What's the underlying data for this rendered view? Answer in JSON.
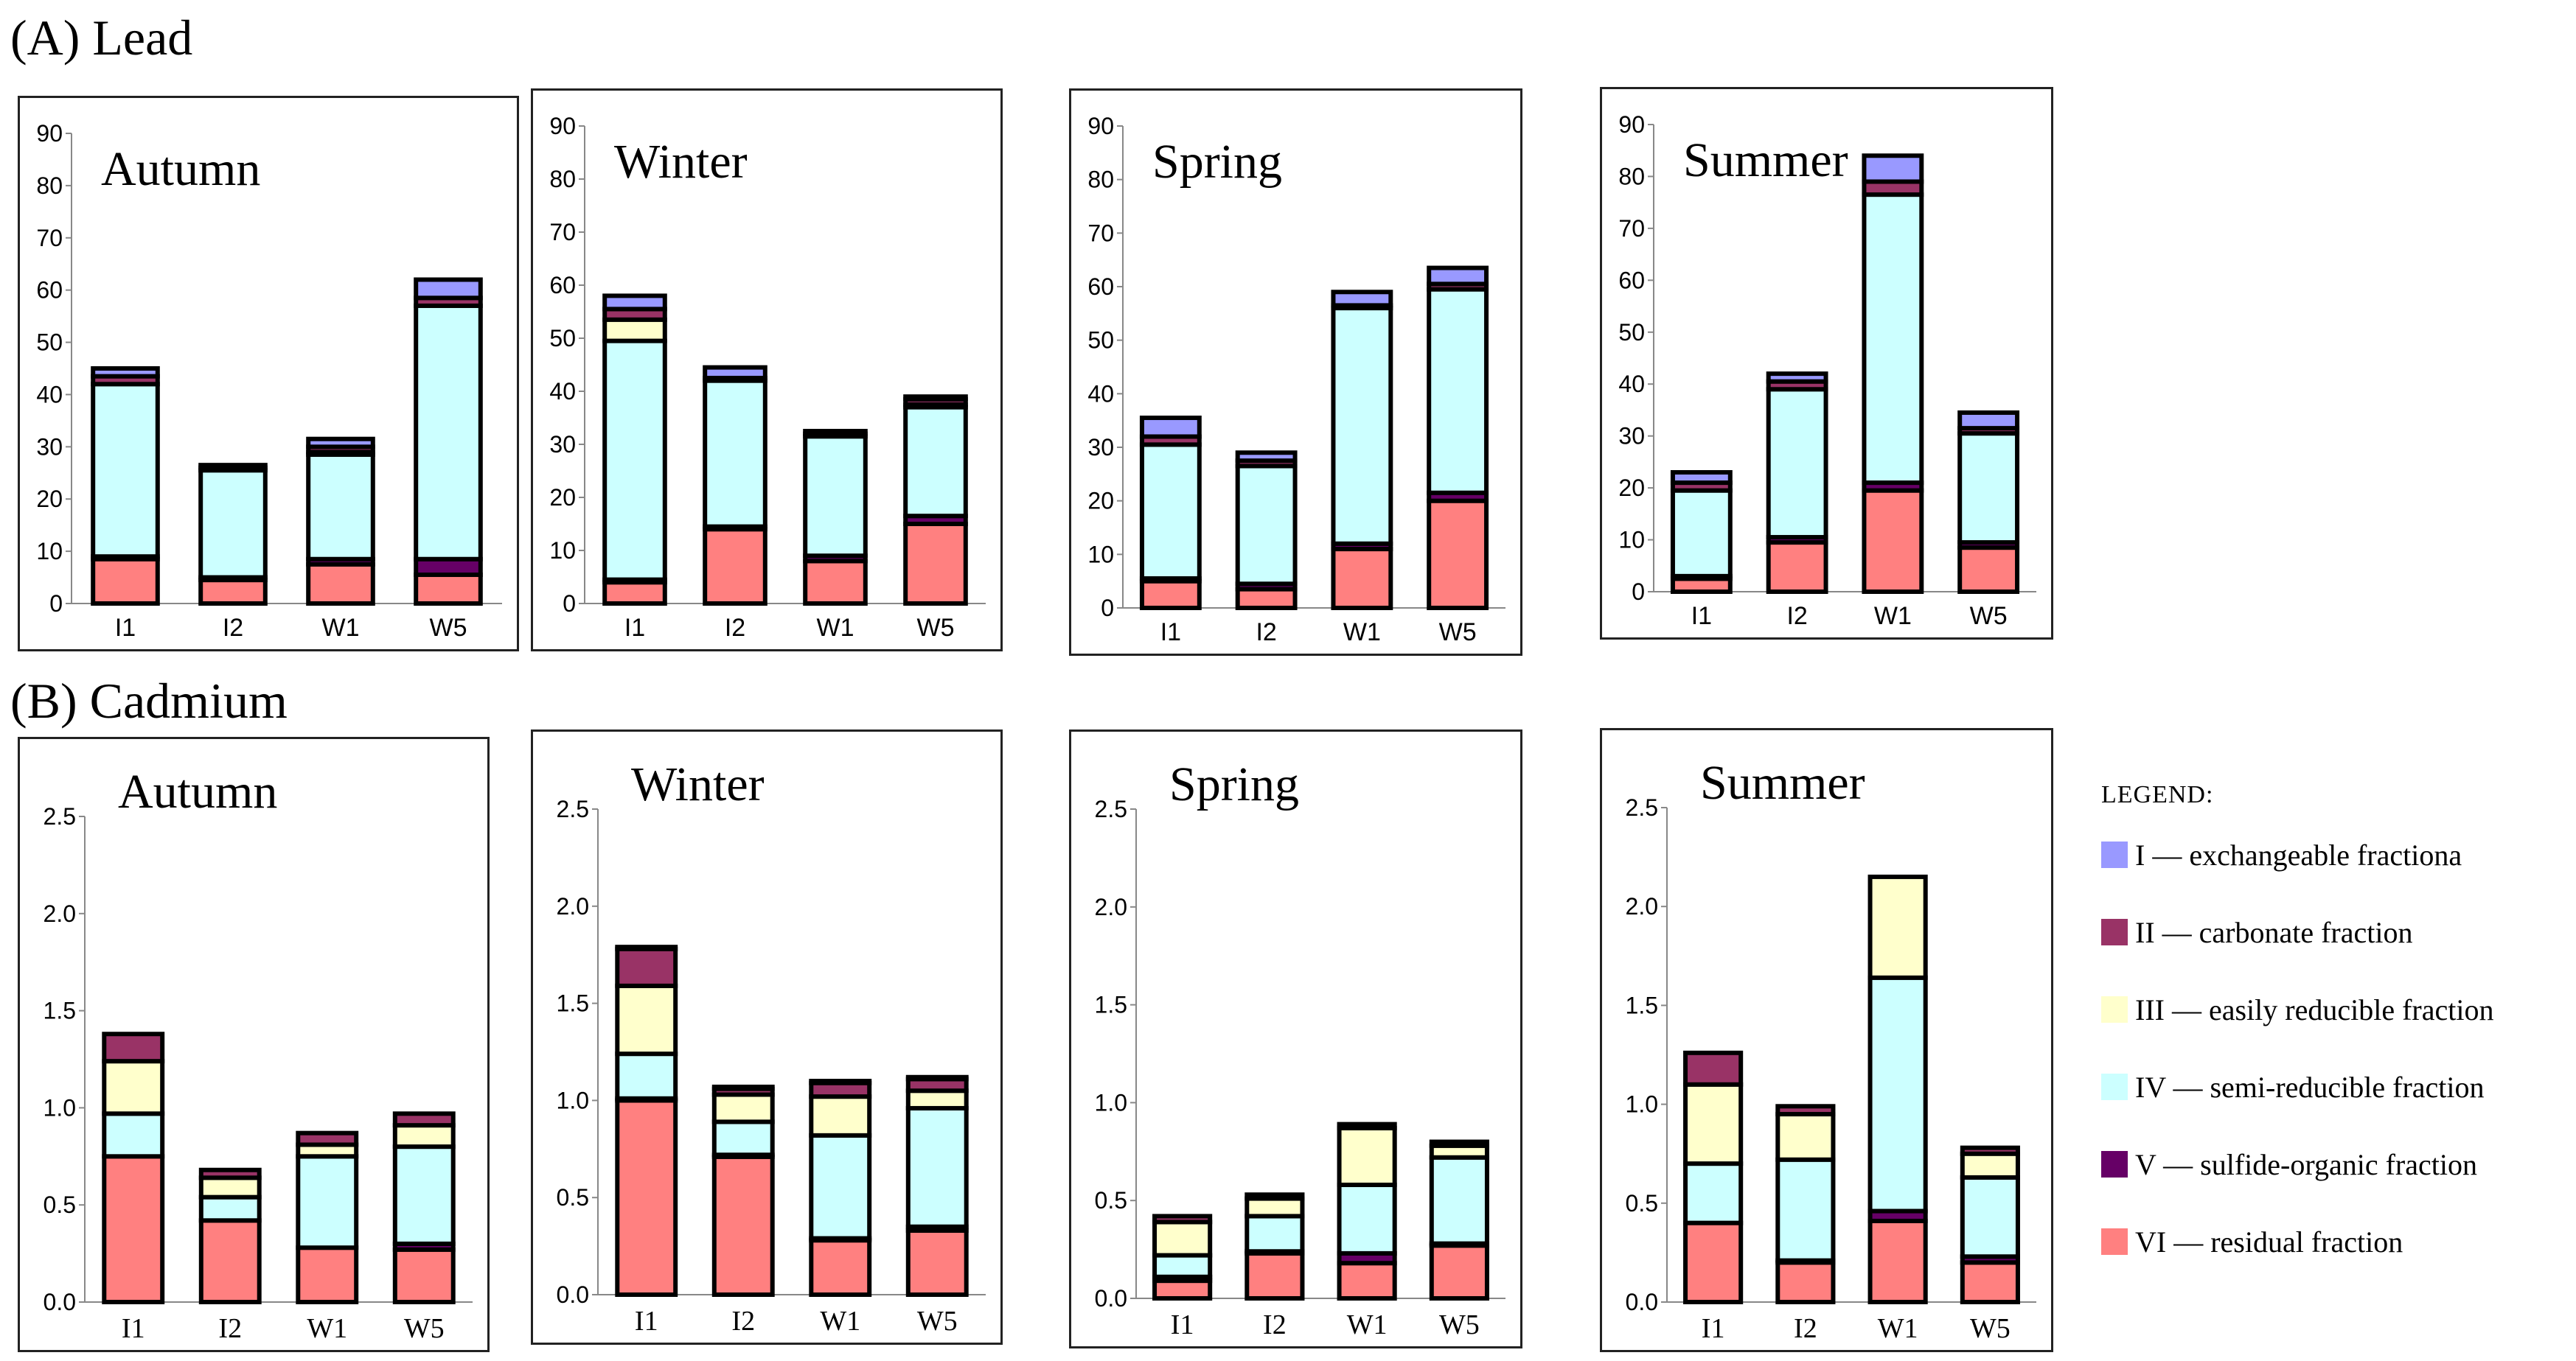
{
  "figure": {
    "section_a": "(A) Lead",
    "section_b": "(B) Cadmium",
    "legend_title": "LEGEND:"
  },
  "legend": [
    {
      "label": "I — exchangeable fractiona",
      "color": "#9999ff"
    },
    {
      "label": "II — carbonate fraction",
      "color": "#993366"
    },
    {
      "label": "III — easily reducible fraction",
      "color": "#ffffcc"
    },
    {
      "label": "IV — semi-reducible fraction",
      "color": "#ccffff"
    },
    {
      "label": "V — sulfide-organic fraction",
      "color": "#660066"
    },
    {
      "label": "VI — residual fraction",
      "color": "#ff8080"
    }
  ],
  "chart_data": [
    {
      "type": "bar",
      "stacked": true,
      "metal": "Lead",
      "title": "Autumn",
      "categories": [
        "I1",
        "I2",
        "W1",
        "W5"
      ],
      "ylim": [
        0,
        90
      ],
      "yticks": [
        "0",
        "10",
        "20",
        "30",
        "40",
        "50",
        "60",
        "70",
        "80",
        "90"
      ],
      "series": [
        {
          "name": "VI — residual fraction",
          "values": [
            8.5,
            4.5,
            7.5,
            5.5
          ]
        },
        {
          "name": "V — sulfide-organic fraction",
          "values": [
            0.5,
            0.5,
            1.0,
            3.0
          ]
        },
        {
          "name": "IV — semi-reducible fraction",
          "values": [
            33,
            20.5,
            20,
            48.5
          ]
        },
        {
          "name": "III — easily reducible fraction",
          "values": [
            0,
            0,
            0.5,
            0
          ]
        },
        {
          "name": "II — carbonate fraction",
          "values": [
            1.5,
            0.5,
            1.0,
            1.5
          ]
        },
        {
          "name": "I — exchangeable fractiona",
          "values": [
            1.5,
            0.5,
            1.5,
            3.5
          ]
        }
      ]
    },
    {
      "type": "bar",
      "stacked": true,
      "metal": "Lead",
      "title": "Winter",
      "categories": [
        "I1",
        "I2",
        "W1",
        "W5"
      ],
      "ylim": [
        0,
        90
      ],
      "yticks": [
        "0",
        "10",
        "20",
        "30",
        "40",
        "50",
        "60",
        "70",
        "80",
        "90"
      ],
      "series": [
        {
          "name": "VI — residual fraction",
          "values": [
            4,
            14,
            8,
            15
          ]
        },
        {
          "name": "V — sulfide-organic fraction",
          "values": [
            0.5,
            0.5,
            1.0,
            1.5
          ]
        },
        {
          "name": "IV — semi-reducible fraction",
          "values": [
            45,
            27.5,
            22.5,
            20.5
          ]
        },
        {
          "name": "III — easily reducible fraction",
          "values": [
            4,
            0,
            0,
            0.5
          ]
        },
        {
          "name": "II — carbonate fraction",
          "values": [
            2,
            0.5,
            0.5,
            1.0
          ]
        },
        {
          "name": "I — exchangeable fractiona",
          "values": [
            2.5,
            2.0,
            0.5,
            0.5
          ]
        }
      ]
    },
    {
      "type": "bar",
      "stacked": true,
      "metal": "Lead",
      "title": "Spring",
      "categories": [
        "I1",
        "I2",
        "W1",
        "W5"
      ],
      "ylim": [
        0,
        90
      ],
      "yticks": [
        "0",
        "10",
        "20",
        "30",
        "40",
        "50",
        "60",
        "70",
        "80",
        "90"
      ],
      "series": [
        {
          "name": "VI — residual fraction",
          "values": [
            5,
            3.5,
            11,
            20
          ]
        },
        {
          "name": "V — sulfide-organic fraction",
          "values": [
            0.5,
            1.0,
            1.0,
            1.5
          ]
        },
        {
          "name": "IV — semi-reducible fraction",
          "values": [
            25,
            22,
            44,
            38
          ]
        },
        {
          "name": "III — easily reducible fraction",
          "values": [
            0,
            0,
            0,
            0
          ]
        },
        {
          "name": "II — carbonate fraction",
          "values": [
            1.5,
            1.0,
            0.5,
            1.0
          ]
        },
        {
          "name": "I — exchangeable fractiona",
          "values": [
            3.5,
            1.5,
            2.5,
            3.0
          ]
        }
      ]
    },
    {
      "type": "bar",
      "stacked": true,
      "metal": "Lead",
      "title": "Summer",
      "categories": [
        "I1",
        "I2",
        "W1",
        "W5"
      ],
      "ylim": [
        0,
        90
      ],
      "yticks": [
        "0",
        "10",
        "20",
        "30",
        "40",
        "50",
        "60",
        "70",
        "80",
        "90"
      ],
      "series": [
        {
          "name": "VI — residual fraction",
          "values": [
            2.5,
            9.5,
            19.5,
            8.5
          ]
        },
        {
          "name": "V — sulfide-organic fraction",
          "values": [
            0.5,
            1.0,
            1.5,
            1.0
          ]
        },
        {
          "name": "IV — semi-reducible fraction",
          "values": [
            16.5,
            28.5,
            55.5,
            21
          ]
        },
        {
          "name": "III — easily reducible fraction",
          "values": [
            0,
            0,
            0,
            0
          ]
        },
        {
          "name": "II — carbonate fraction",
          "values": [
            1.5,
            1.5,
            2.5,
            1.0
          ]
        },
        {
          "name": "I — exchangeable fractiona",
          "values": [
            2,
            1.5,
            5,
            3
          ]
        }
      ]
    },
    {
      "type": "bar",
      "stacked": true,
      "metal": "Cadmium",
      "title": "Autumn",
      "categories": [
        "I1",
        "I2",
        "W1",
        "W5"
      ],
      "ylim": [
        0,
        2.5
      ],
      "yticks": [
        "0.0",
        "0.5",
        "1.0",
        "1.5",
        "2.0",
        "2.5"
      ],
      "series": [
        {
          "name": "VI — residual fraction",
          "values": [
            0.75,
            0.42,
            0.28,
            0.27
          ]
        },
        {
          "name": "V — sulfide-organic fraction",
          "values": [
            0,
            0,
            0,
            0.03
          ]
        },
        {
          "name": "IV — semi-reducible fraction",
          "values": [
            0.22,
            0.12,
            0.47,
            0.5
          ]
        },
        {
          "name": "III — easily reducible fraction",
          "values": [
            0.27,
            0.1,
            0.06,
            0.11
          ]
        },
        {
          "name": "II — carbonate fraction",
          "values": [
            0.14,
            0.04,
            0.06,
            0.06
          ]
        },
        {
          "name": "I — exchangeable fractiona",
          "values": [
            0,
            0,
            0,
            0
          ]
        }
      ]
    },
    {
      "type": "bar",
      "stacked": true,
      "metal": "Cadmium",
      "title": "Winter",
      "categories": [
        "I1",
        "I2",
        "W1",
        "W5"
      ],
      "ylim": [
        0,
        2.5
      ],
      "yticks": [
        "0.0",
        "0.5",
        "1.0",
        "1.5",
        "2.0",
        "2.5"
      ],
      "series": [
        {
          "name": "VI — residual fraction",
          "values": [
            1.0,
            0.71,
            0.28,
            0.33
          ]
        },
        {
          "name": "V — sulfide-organic fraction",
          "values": [
            0.01,
            0.01,
            0.01,
            0.02
          ]
        },
        {
          "name": "IV — semi-reducible fraction",
          "values": [
            0.23,
            0.17,
            0.53,
            0.61
          ]
        },
        {
          "name": "III — easily reducible fraction",
          "values": [
            0.35,
            0.14,
            0.2,
            0.09
          ]
        },
        {
          "name": "II — carbonate fraction",
          "values": [
            0.19,
            0.03,
            0.07,
            0.06
          ]
        },
        {
          "name": "I — exchangeable fractiona",
          "values": [
            0.01,
            0.01,
            0.01,
            0.01
          ]
        }
      ]
    },
    {
      "type": "bar",
      "stacked": true,
      "metal": "Cadmium",
      "title": "Spring",
      "categories": [
        "I1",
        "I2",
        "W1",
        "W5"
      ],
      "ylim": [
        0,
        2.5
      ],
      "yticks": [
        "0.0",
        "0.5",
        "1.0",
        "1.5",
        "2.0",
        "2.5"
      ],
      "series": [
        {
          "name": "VI — residual fraction",
          "values": [
            0.09,
            0.23,
            0.18,
            0.27
          ]
        },
        {
          "name": "V — sulfide-organic fraction",
          "values": [
            0.02,
            0.01,
            0.05,
            0.01
          ]
        },
        {
          "name": "IV — semi-reducible fraction",
          "values": [
            0.11,
            0.18,
            0.35,
            0.44
          ]
        },
        {
          "name": "III — easily reducible fraction",
          "values": [
            0.17,
            0.09,
            0.29,
            0.06
          ]
        },
        {
          "name": "II — carbonate fraction",
          "values": [
            0.03,
            0.02,
            0.02,
            0.02
          ]
        },
        {
          "name": "I — exchangeable fractiona",
          "values": [
            0,
            0,
            0,
            0
          ]
        }
      ]
    },
    {
      "type": "bar",
      "stacked": true,
      "metal": "Cadmium",
      "title": "Summer",
      "categories": [
        "I1",
        "I2",
        "W1",
        "W5"
      ],
      "ylim": [
        0,
        2.5
      ],
      "yticks": [
        "0.0",
        "0.5",
        "1.0",
        "1.5",
        "2.0",
        "2.5"
      ],
      "series": [
        {
          "name": "VI — residual fraction",
          "values": [
            0.4,
            0.2,
            0.41,
            0.2
          ]
        },
        {
          "name": "V — sulfide-organic fraction",
          "values": [
            0,
            0.01,
            0.05,
            0.03
          ]
        },
        {
          "name": "IV — semi-reducible fraction",
          "values": [
            0.3,
            0.51,
            1.18,
            0.4
          ]
        },
        {
          "name": "III — easily reducible fraction",
          "values": [
            0.4,
            0.23,
            0.51,
            0.12
          ]
        },
        {
          "name": "II — carbonate fraction",
          "values": [
            0.16,
            0.04,
            0,
            0.03
          ]
        },
        {
          "name": "I — exchangeable fractiona",
          "values": [
            0,
            0,
            0,
            0
          ]
        }
      ]
    }
  ]
}
